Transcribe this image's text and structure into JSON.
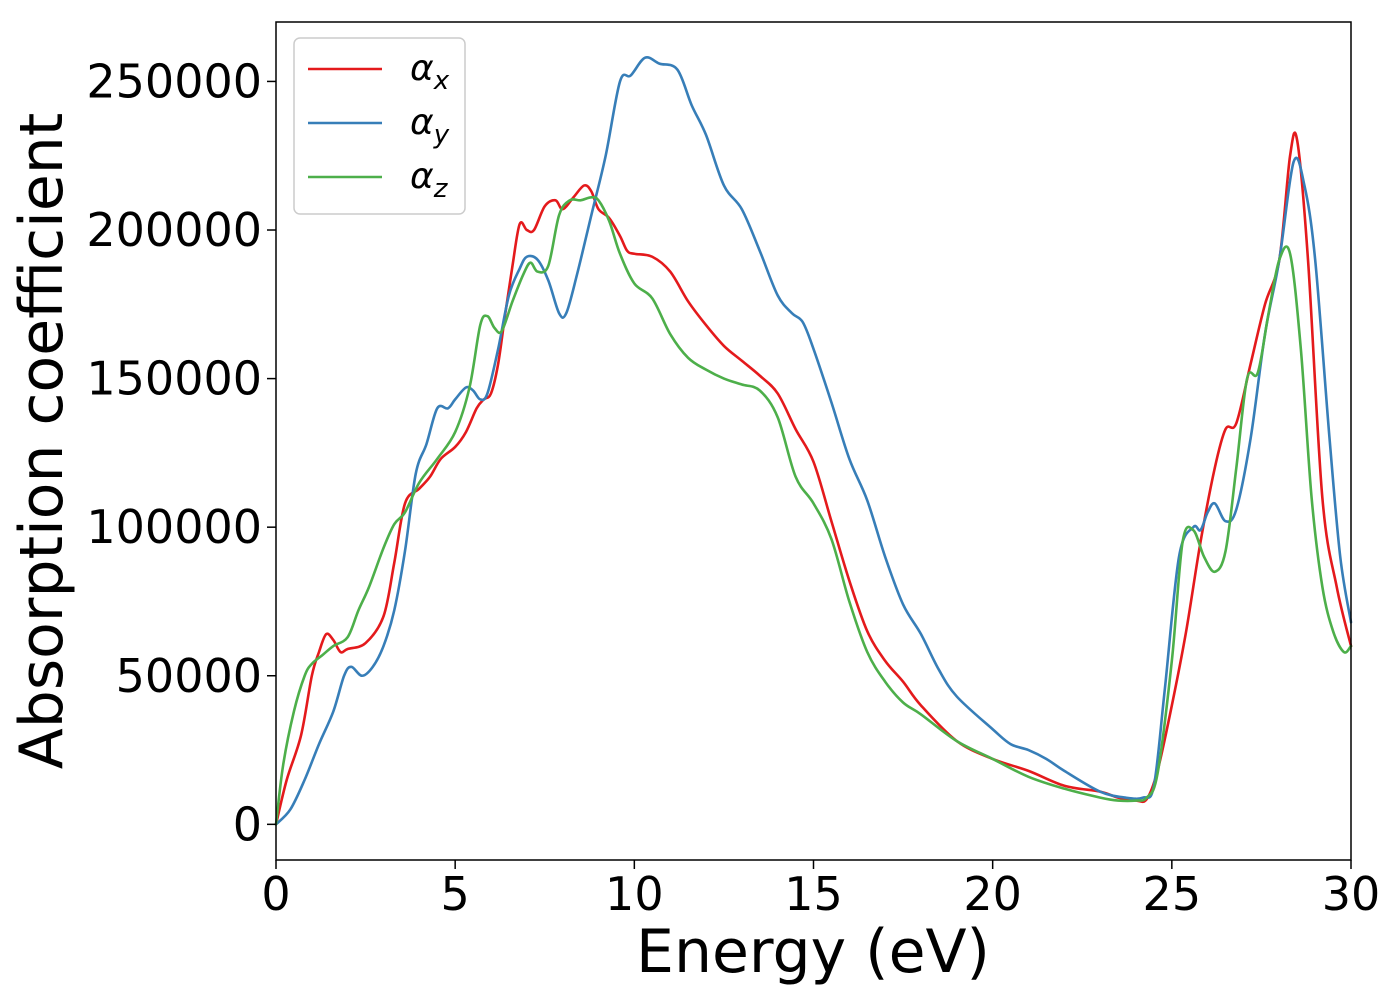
{
  "chart_data": {
    "type": "line",
    "title": "",
    "xlabel": "Energy (eV)",
    "ylabel": "Absorption coefficient",
    "xlim": [
      0,
      30
    ],
    "ylim": [
      -12000,
      270000
    ],
    "xticks": [
      0,
      5,
      10,
      15,
      20,
      25,
      30
    ],
    "xtick_labels": [
      "0",
      "5",
      "10",
      "15",
      "20",
      "25",
      "30"
    ],
    "yticks": [
      0,
      50000,
      100000,
      150000,
      200000,
      250000
    ],
    "ytick_labels": [
      "0",
      "50000",
      "100000",
      "150000",
      "200000",
      "250000"
    ],
    "grid": false,
    "legend_position": "top-left",
    "series": [
      {
        "name": "α",
        "subscript": "x",
        "color": "#e41a1c",
        "x": [
          0,
          0.3,
          0.7,
          1.0,
          1.2,
          1.4,
          1.6,
          1.8,
          2.0,
          2.5,
          3.0,
          3.3,
          3.6,
          4.0,
          4.3,
          4.6,
          5.0,
          5.3,
          5.6,
          5.8,
          6.0,
          6.2,
          6.4,
          6.6,
          6.8,
          7.0,
          7.2,
          7.5,
          7.8,
          8.0,
          8.3,
          8.6,
          8.8,
          9.0,
          9.3,
          9.6,
          9.8,
          10.0,
          10.5,
          11.0,
          11.5,
          12.0,
          12.5,
          13.0,
          13.5,
          14.0,
          14.5,
          15.0,
          15.5,
          16.0,
          16.5,
          17.0,
          17.5,
          18.0,
          19.0,
          20.0,
          21.0,
          22.0,
          23.0,
          23.5,
          24.0,
          24.3,
          24.6,
          25.0,
          25.4,
          25.8,
          26.2,
          26.5,
          26.8,
          27.2,
          27.6,
          28.0,
          28.3,
          28.5,
          28.8,
          29.2,
          29.6,
          30.0
        ],
        "y": [
          0,
          15000,
          30000,
          50000,
          58000,
          64000,
          62000,
          58000,
          59000,
          61000,
          70000,
          88000,
          108000,
          113000,
          117000,
          123000,
          127000,
          132000,
          140000,
          143000,
          145000,
          155000,
          172000,
          188000,
          202000,
          200000,
          200000,
          208000,
          210000,
          207000,
          211000,
          215000,
          213000,
          207000,
          204000,
          198000,
          193000,
          192000,
          191000,
          186000,
          176000,
          168000,
          161000,
          156000,
          151000,
          145000,
          133000,
          122000,
          102000,
          82000,
          65000,
          55000,
          48000,
          40000,
          28000,
          22000,
          18000,
          13000,
          11000,
          9000,
          8000,
          8500,
          18000,
          40000,
          65000,
          95000,
          120000,
          133000,
          135000,
          155000,
          175000,
          190000,
          225000,
          230000,
          190000,
          110000,
          80000,
          60000
        ]
      },
      {
        "name": "α",
        "subscript": "y",
        "color": "#377eb8",
        "x": [
          0,
          0.4,
          0.8,
          1.2,
          1.6,
          1.9,
          2.1,
          2.4,
          2.7,
          3.0,
          3.3,
          3.6,
          3.9,
          4.2,
          4.5,
          4.8,
          5.0,
          5.3,
          5.5,
          5.7,
          5.9,
          6.2,
          6.5,
          6.8,
          7.0,
          7.3,
          7.6,
          7.9,
          8.1,
          8.4,
          8.8,
          9.2,
          9.6,
          9.9,
          10.3,
          10.7,
          11.2,
          11.6,
          12.0,
          12.5,
          13.0,
          13.5,
          14.0,
          14.4,
          14.7,
          15.0,
          15.5,
          16.0,
          16.5,
          17.0,
          17.5,
          18.0,
          18.5,
          19.0,
          20.0,
          20.5,
          21.0,
          21.5,
          22.0,
          23.0,
          23.7,
          24.2,
          24.5,
          24.8,
          25.2,
          25.6,
          25.8,
          26.0,
          26.2,
          26.5,
          26.8,
          27.2,
          27.6,
          28.0,
          28.4,
          28.7,
          29.0,
          29.4,
          29.7,
          30.0
        ],
        "y": [
          0,
          5000,
          15000,
          27000,
          38000,
          50000,
          53000,
          50000,
          53000,
          60000,
          72000,
          92000,
          118000,
          128000,
          140000,
          140000,
          143000,
          147000,
          146000,
          143000,
          145000,
          160000,
          178000,
          187000,
          191000,
          190000,
          183000,
          172000,
          172000,
          185000,
          205000,
          225000,
          250000,
          252000,
          258000,
          256000,
          254000,
          242000,
          232000,
          215000,
          207000,
          193000,
          178000,
          172000,
          169000,
          160000,
          142000,
          123000,
          109000,
          90000,
          74000,
          64000,
          52000,
          43000,
          32000,
          27000,
          25000,
          22000,
          18000,
          11000,
          9000,
          9000,
          13000,
          45000,
          90000,
          100000,
          99000,
          105000,
          108000,
          102000,
          106000,
          130000,
          165000,
          190000,
          223000,
          215000,
          190000,
          130000,
          90000,
          68000
        ]
      },
      {
        "name": "α",
        "subscript": "z",
        "color": "#4daf4a",
        "x": [
          0,
          0.2,
          0.5,
          0.8,
          1.0,
          1.3,
          1.6,
          2.0,
          2.3,
          2.6,
          3.0,
          3.3,
          3.6,
          4.0,
          4.5,
          5.0,
          5.4,
          5.7,
          5.9,
          6.1,
          6.3,
          6.6,
          6.9,
          7.1,
          7.3,
          7.6,
          7.9,
          8.2,
          8.5,
          8.8,
          9.0,
          9.3,
          9.6,
          10.0,
          10.5,
          11.0,
          11.5,
          12.0,
          12.5,
          13.0,
          13.5,
          14.0,
          14.5,
          15.0,
          15.5,
          16.0,
          16.5,
          17.0,
          17.5,
          18.0,
          19.0,
          20.0,
          21.0,
          22.0,
          23.0,
          23.5,
          24.0,
          24.3,
          24.6,
          25.0,
          25.3,
          25.6,
          25.9,
          26.2,
          26.5,
          26.8,
          27.1,
          27.4,
          27.7,
          28.0,
          28.3,
          28.6,
          28.9,
          29.2,
          29.5,
          29.8,
          30.0
        ],
        "y": [
          0,
          20000,
          38000,
          50000,
          54000,
          57000,
          60000,
          63000,
          72000,
          80000,
          93000,
          101000,
          105000,
          115000,
          123000,
          132000,
          147000,
          168000,
          171000,
          167000,
          166000,
          176000,
          185000,
          189000,
          186000,
          188000,
          205000,
          210000,
          210000,
          211000,
          210000,
          203000,
          192000,
          182000,
          177000,
          165000,
          157000,
          153000,
          150000,
          148000,
          146000,
          137000,
          117000,
          108000,
          96000,
          75000,
          58000,
          48000,
          41000,
          37000,
          28000,
          22000,
          16000,
          12000,
          9000,
          8000,
          8000,
          9000,
          17000,
          55000,
          95000,
          99000,
          90000,
          85000,
          92000,
          120000,
          150000,
          152000,
          172000,
          190000,
          192000,
          160000,
          110000,
          80000,
          65000,
          58000,
          60000
        ]
      }
    ]
  }
}
